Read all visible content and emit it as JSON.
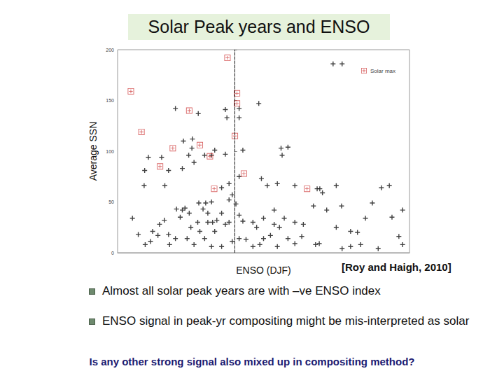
{
  "chart_data": {
    "type": "scatter",
    "title": "Solar Peak years and ENSO",
    "x_label": "ENSO (DJF)",
    "y_label": "Average SSN",
    "xlim": [
      -2.2,
      3.3
    ],
    "ylim": [
      0,
      200
    ],
    "yticks": [
      0,
      50,
      100,
      150,
      200
    ],
    "tick_labels": "y",
    "grid": false,
    "legend": "upper right",
    "reference_x": 0,
    "series": [
      {
        "color": "#111111",
        "marker": "plus",
        "values": [
          [
            1.86,
            186
          ],
          [
            2.03,
            186
          ],
          [
            -1.11,
            142
          ],
          [
            -0.68,
            137
          ],
          [
            -0.17,
            141
          ],
          [
            -0.14,
            133
          ],
          [
            0.09,
            142
          ],
          [
            0.46,
            147
          ],
          [
            0.09,
            133
          ],
          [
            -0.96,
            110
          ],
          [
            -0.79,
            112
          ],
          [
            -0.8,
            103
          ],
          [
            -1.62,
            94
          ],
          [
            -1.69,
            81
          ],
          [
            -1.37,
            94
          ],
          [
            -1.24,
            81
          ],
          [
            -0.98,
            83
          ],
          [
            -0.86,
            96
          ],
          [
            -0.76,
            89
          ],
          [
            -0.56,
            96
          ],
          [
            -0.43,
            96
          ],
          [
            -0.37,
            101
          ],
          [
            -0.17,
            97
          ],
          [
            0.16,
            101
          ],
          [
            0.88,
            103
          ],
          [
            0.9,
            96
          ],
          [
            1.01,
            104
          ],
          [
            0.09,
            75
          ],
          [
            -0.24,
            64
          ],
          [
            -0.1,
            68
          ],
          [
            0.62,
            66
          ],
          [
            0.51,
            73
          ],
          [
            0.81,
            68
          ],
          [
            1.14,
            66
          ],
          [
            1.56,
            63
          ],
          [
            1.61,
            63
          ],
          [
            1.92,
            66
          ],
          [
            2.77,
            64
          ],
          [
            2.92,
            66
          ],
          [
            -1.7,
            66
          ],
          [
            -1.31,
            66
          ],
          [
            -1.92,
            34
          ],
          [
            -1.09,
            43
          ],
          [
            -0.98,
            42
          ],
          [
            -0.93,
            44
          ],
          [
            -0.59,
            43
          ],
          [
            -0.5,
            39
          ],
          [
            -0.24,
            39
          ],
          [
            0.09,
            14
          ],
          [
            -0.17,
            28
          ],
          [
            0.16,
            31
          ],
          [
            0.35,
            30
          ],
          [
            0.55,
            34
          ],
          [
            0.75,
            28
          ],
          [
            0.94,
            34
          ],
          [
            1.49,
            46
          ],
          [
            1.74,
            42
          ],
          [
            2.02,
            46
          ],
          [
            1.92,
            25
          ],
          [
            2.19,
            21
          ],
          [
            2.32,
            20
          ],
          [
            2.47,
            34
          ],
          [
            2.6,
            49
          ],
          [
            2.97,
            35
          ],
          [
            3.17,
            42
          ],
          [
            -1.24,
            18
          ],
          [
            -1.22,
            8
          ],
          [
            -1.11,
            14
          ],
          [
            -0.89,
            14
          ],
          [
            -0.76,
            8
          ],
          [
            -0.56,
            14
          ],
          [
            -0.43,
            6
          ],
          [
            -0.37,
            21
          ],
          [
            -0.24,
            6
          ],
          [
            -0.04,
            11
          ],
          [
            0.22,
            13
          ],
          [
            0.35,
            6
          ],
          [
            0.55,
            14
          ],
          [
            0.81,
            6
          ],
          [
            1.01,
            14
          ],
          [
            1.14,
            9
          ],
          [
            1.27,
            16
          ],
          [
            1.53,
            8
          ],
          [
            1.6,
            9
          ],
          [
            2.19,
            6
          ],
          [
            2.38,
            8
          ],
          [
            -0.82,
            25
          ],
          [
            -0.69,
            30
          ],
          [
            -0.65,
            21
          ],
          [
            -0.5,
            30
          ],
          [
            -0.41,
            30
          ],
          [
            -0.33,
            32
          ],
          [
            -0.1,
            30
          ],
          [
            0.75,
            42
          ],
          [
            1.14,
            30
          ],
          [
            1.3,
            28
          ],
          [
            1.66,
            59
          ],
          [
            -1.58,
            11
          ],
          [
            -1.81,
            18
          ],
          [
            -1.02,
            35
          ],
          [
            -1.41,
            28
          ],
          [
            -1.54,
            21
          ],
          [
            0.42,
            25
          ],
          [
            0.48,
            8
          ],
          [
            0.68,
            17
          ],
          [
            0.85,
            25
          ],
          [
            2.03,
            4
          ],
          [
            2.71,
            4
          ],
          [
            3.17,
            8
          ],
          [
            3.1,
            16
          ],
          [
            0.09,
            37
          ],
          [
            0.03,
            48
          ],
          [
            -0.04,
            57
          ],
          [
            -1.32,
            32
          ],
          [
            -1.44,
            17
          ],
          [
            -1.68,
            8
          ],
          [
            -0.85,
            39
          ],
          [
            -0.67,
            49
          ],
          [
            -0.54,
            49
          ],
          [
            -0.43,
            50
          ],
          [
            -0.1,
            52
          ]
        ]
      },
      {
        "name": "Solar max",
        "color": "#d04040",
        "marker": "boxed_plus",
        "values": [
          [
            -1.95,
            159
          ],
          [
            -1.75,
            119
          ],
          [
            -1.4,
            85
          ],
          [
            -1.16,
            103
          ],
          [
            -0.85,
            140
          ],
          [
            -0.65,
            106
          ],
          [
            -0.46,
            95
          ],
          [
            -0.38,
            63
          ],
          [
            -0.13,
            192
          ],
          [
            0.01,
            115
          ],
          [
            0.05,
            157
          ],
          [
            0.05,
            147
          ],
          [
            0.18,
            78
          ],
          [
            1.37,
            63
          ]
        ]
      }
    ]
  },
  "citation": "[Roy and Haigh, 2010]",
  "bullets": [
    "Almost all solar peak years are with –ve ENSO index",
    "ENSO signal in peak-yr  compositing might be mis-interpreted as solar"
  ],
  "question": "Is any other strong signal also mixed up in compositing method?"
}
